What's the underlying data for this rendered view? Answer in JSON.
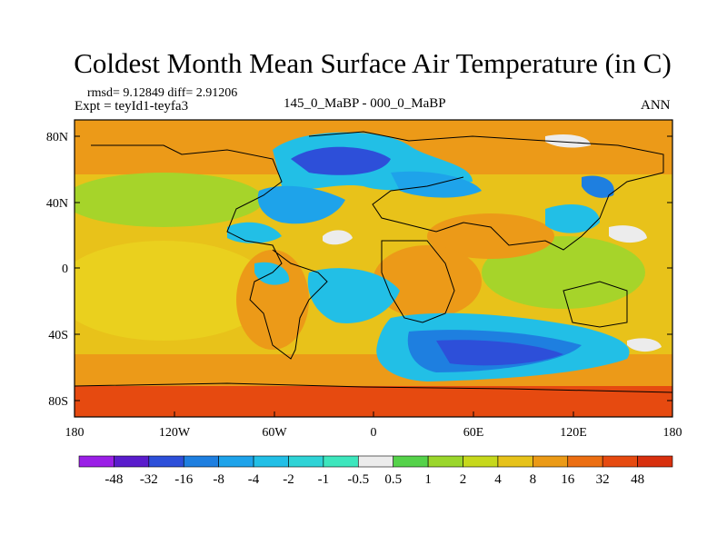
{
  "title": "Coldest Month Mean Surface Air Temperature (in C)",
  "stats": {
    "rmsd": "rmsd= 9.12849 diff= 2.91206",
    "expt": "Expt = teyId1-teyfa3"
  },
  "subtitle_center": "145_0_MaBP - 000_0_MaBP",
  "subtitle_right": "ANN",
  "axes": {
    "y_labels": [
      "80N",
      "40N",
      "0",
      "40S",
      "80S"
    ],
    "x_labels": [
      "180",
      "120W",
      "60W",
      "0",
      "60E",
      "120E",
      "180"
    ]
  },
  "colorbar": {
    "labels": [
      "-48",
      "-32",
      "-16",
      "-8",
      "-4",
      "-2",
      "-1",
      "-0.5",
      "0.5",
      "1",
      "2",
      "4",
      "8",
      "16",
      "32",
      "48"
    ],
    "colors": [
      "#9a1fe6",
      "#5a1ccc",
      "#2d4fd9",
      "#1e7fe0",
      "#1ea3ea",
      "#22bfe6",
      "#2fd3d6",
      "#3de6bd",
      "#ececec",
      "#55d24a",
      "#9ad62c",
      "#c6d81c",
      "#e6c21a",
      "#eb9a16",
      "#ec6e12",
      "#e64a10",
      "#d8300e"
    ]
  },
  "map_colors": {
    "warm_orange": "#ec9a18",
    "yellow": "#e8c21a",
    "green": "#a6d42a",
    "dark_blue": "#2d4fd9",
    "blue": "#1e7fe0",
    "cyan": "#22bfe6",
    "white": "#ececec",
    "red": "#e64a10"
  }
}
